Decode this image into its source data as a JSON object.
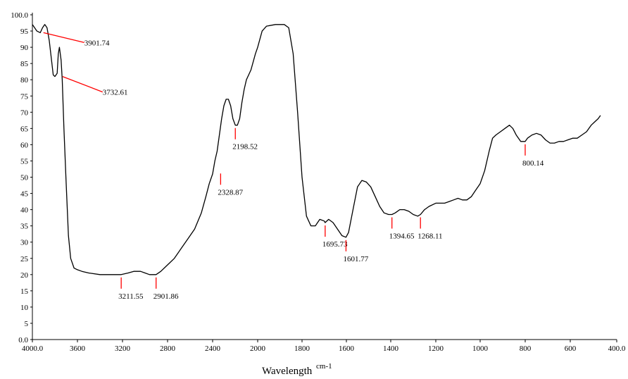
{
  "chart_data": {
    "type": "line",
    "xlabel": "Wavelength",
    "xlabel_unit": "cm-1",
    "ylabel": "",
    "xlim": [
      4000.0,
      400.0
    ],
    "ylim": [
      0.0,
      100.0
    ],
    "x_reversed": true,
    "grid": false,
    "x_ticks": [
      "4000.0",
      "3600",
      "3200",
      "2800",
      "2400",
      "2000",
      "1800",
      "1600",
      "1400",
      "1200",
      "1000",
      "800",
      "600",
      "400.0"
    ],
    "x_tick_values": [
      4000,
      3600,
      3200,
      2800,
      2400,
      2000,
      1800,
      1600,
      1400,
      1200,
      1000,
      800,
      600,
      400
    ],
    "y_ticks": [
      "0.0",
      "5",
      "10",
      "15",
      "20",
      "25",
      "30",
      "35",
      "40",
      "45",
      "50",
      "55",
      "60",
      "65",
      "70",
      "75",
      "80",
      "85",
      "90",
      "95",
      "100.0"
    ],
    "y_tick_values": [
      0,
      5,
      10,
      15,
      20,
      25,
      30,
      35,
      40,
      45,
      50,
      55,
      60,
      65,
      70,
      75,
      80,
      85,
      90,
      95,
      100
    ],
    "series": [
      {
        "color": "#000000",
        "points": [
          [
            4000,
            97
          ],
          [
            3960,
            95
          ],
          [
            3930,
            94.5
          ],
          [
            3910,
            96
          ],
          [
            3890,
            97
          ],
          [
            3870,
            96
          ],
          [
            3850,
            92
          ],
          [
            3830,
            86
          ],
          [
            3815,
            81.5
          ],
          [
            3800,
            81
          ],
          [
            3780,
            82
          ],
          [
            3770,
            88
          ],
          [
            3760,
            90
          ],
          [
            3745,
            86
          ],
          [
            3735,
            80
          ],
          [
            3720,
            65
          ],
          [
            3700,
            48
          ],
          [
            3680,
            32
          ],
          [
            3660,
            25
          ],
          [
            3630,
            22
          ],
          [
            3600,
            21.5
          ],
          [
            3560,
            21
          ],
          [
            3500,
            20.5
          ],
          [
            3400,
            20
          ],
          [
            3300,
            20
          ],
          [
            3211.55,
            20
          ],
          [
            3150,
            20.5
          ],
          [
            3100,
            21
          ],
          [
            3040,
            21
          ],
          [
            3000,
            20.5
          ],
          [
            2960,
            20
          ],
          [
            2930,
            20
          ],
          [
            2901.86,
            20
          ],
          [
            2860,
            21
          ],
          [
            2800,
            23
          ],
          [
            2740,
            25
          ],
          [
            2680,
            28
          ],
          [
            2620,
            31
          ],
          [
            2560,
            34
          ],
          [
            2500,
            39
          ],
          [
            2460,
            44
          ],
          [
            2430,
            48
          ],
          [
            2400,
            51
          ],
          [
            2380,
            55
          ],
          [
            2360,
            58
          ],
          [
            2340,
            63
          ],
          [
            2320,
            68
          ],
          [
            2300,
            72
          ],
          [
            2280,
            74
          ],
          [
            2260,
            74
          ],
          [
            2240,
            72
          ],
          [
            2220,
            68
          ],
          [
            2198.52,
            66
          ],
          [
            2180,
            66
          ],
          [
            2160,
            68
          ],
          [
            2140,
            73
          ],
          [
            2120,
            77
          ],
          [
            2100,
            80
          ],
          [
            2060,
            83
          ],
          [
            2020,
            88
          ],
          [
            2000,
            90
          ],
          [
            1980,
            95
          ],
          [
            1960,
            96.5
          ],
          [
            1920,
            97
          ],
          [
            1880,
            97
          ],
          [
            1860,
            96
          ],
          [
            1840,
            88
          ],
          [
            1820,
            70
          ],
          [
            1800,
            50
          ],
          [
            1780,
            38
          ],
          [
            1760,
            35
          ],
          [
            1740,
            35
          ],
          [
            1720,
            37
          ],
          [
            1700,
            36.5
          ],
          [
            1695.73,
            36
          ],
          [
            1680,
            37
          ],
          [
            1660,
            36
          ],
          [
            1640,
            34
          ],
          [
            1620,
            32
          ],
          [
            1601.77,
            31.5
          ],
          [
            1590,
            33
          ],
          [
            1570,
            40
          ],
          [
            1550,
            47
          ],
          [
            1530,
            49
          ],
          [
            1510,
            48.5
          ],
          [
            1490,
            47
          ],
          [
            1470,
            44
          ],
          [
            1450,
            41
          ],
          [
            1430,
            39
          ],
          [
            1410,
            38.5
          ],
          [
            1394.65,
            38.5
          ],
          [
            1380,
            39
          ],
          [
            1360,
            40
          ],
          [
            1340,
            40
          ],
          [
            1320,
            39.5
          ],
          [
            1300,
            38.5
          ],
          [
            1280,
            38
          ],
          [
            1268.11,
            38.5
          ],
          [
            1250,
            40
          ],
          [
            1230,
            41
          ],
          [
            1200,
            42
          ],
          [
            1160,
            42
          ],
          [
            1140,
            42.5
          ],
          [
            1120,
            43
          ],
          [
            1100,
            43.5
          ],
          [
            1080,
            43
          ],
          [
            1060,
            43
          ],
          [
            1040,
            44
          ],
          [
            1020,
            46
          ],
          [
            1000,
            48
          ],
          [
            980,
            52
          ],
          [
            960,
            58
          ],
          [
            945,
            62
          ],
          [
            930,
            63
          ],
          [
            910,
            64
          ],
          [
            890,
            65
          ],
          [
            870,
            66
          ],
          [
            855,
            65
          ],
          [
            840,
            63
          ],
          [
            820,
            61
          ],
          [
            800.14,
            61
          ],
          [
            790,
            62
          ],
          [
            770,
            63
          ],
          [
            750,
            63.5
          ],
          [
            730,
            63
          ],
          [
            710,
            61.5
          ],
          [
            690,
            60.5
          ],
          [
            670,
            60.5
          ],
          [
            650,
            61
          ],
          [
            630,
            61
          ],
          [
            610,
            61.5
          ],
          [
            590,
            62
          ],
          [
            570,
            62
          ],
          [
            550,
            63
          ],
          [
            530,
            64
          ],
          [
            510,
            66
          ],
          [
            495,
            67
          ],
          [
            480,
            68
          ],
          [
            470,
            69
          ]
        ]
      }
    ],
    "annotations": [
      {
        "text": "3901.74",
        "x": 3901.74,
        "y": 94.5,
        "style": "leader"
      },
      {
        "text": "3732.61",
        "x": 3732.61,
        "y": 81,
        "style": "leader"
      },
      {
        "text": "3211.55",
        "x": 3211.55,
        "y": 20,
        "style": "below"
      },
      {
        "text": "2901.86",
        "x": 2901.86,
        "y": 20,
        "style": "below"
      },
      {
        "text": "2328.87",
        "x": 2328.87,
        "y": 52,
        "style": "below"
      },
      {
        "text": "2198.52",
        "x": 2198.52,
        "y": 66,
        "style": "below"
      },
      {
        "text": "1695.73",
        "x": 1695.73,
        "y": 36,
        "style": "below"
      },
      {
        "text": "1601.77",
        "x": 1601.77,
        "y": 31.5,
        "style": "below"
      },
      {
        "text": "1394.65",
        "x": 1394.65,
        "y": 38.5,
        "style": "below"
      },
      {
        "text": "1268.11",
        "x": 1268.11,
        "y": 38.5,
        "style": "below"
      },
      {
        "text": "800.14",
        "x": 800.14,
        "y": 61,
        "style": "below"
      }
    ],
    "annotation_color": "#ff0000"
  }
}
